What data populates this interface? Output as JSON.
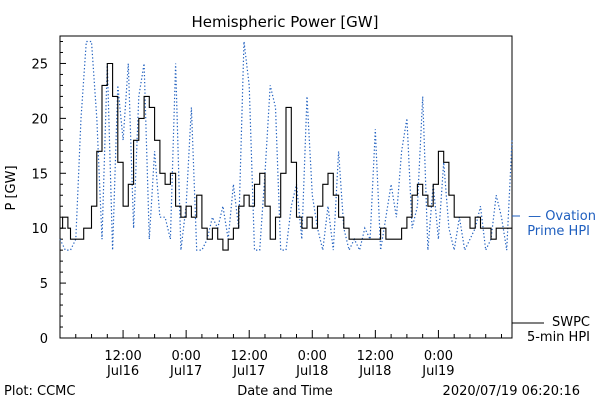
{
  "footer": {
    "plot_source": "Plot: CCMC",
    "timestamp": "2020/07/19 06:20:16"
  },
  "legend": {
    "ovation": {
      "line1": "— Ovation",
      "line2": "Prime HPI",
      "color": "#1f5fbf"
    },
    "swpc": {
      "line1": "SWPC",
      "line2": "5-min HPI",
      "color": "#000000"
    }
  },
  "chart_data": {
    "type": "line",
    "title": "Hemispheric Power [GW]",
    "xlabel": "Date and Time",
    "ylabel": "P [GW]",
    "xlim": [
      0,
      86
    ],
    "ylim": [
      0,
      27.5
    ],
    "yticks": [
      0,
      5,
      10,
      15,
      20,
      25
    ],
    "xticks": [
      {
        "x": 12,
        "line1": "12:00",
        "line2": "Jul16"
      },
      {
        "x": 24,
        "line1": "0:00",
        "line2": "Jul17"
      },
      {
        "x": 36,
        "line1": "12:00",
        "line2": "Jul17"
      },
      {
        "x": 48,
        "line1": "0:00",
        "line2": "Jul18"
      },
      {
        "x": 60,
        "line1": "12:00",
        "line2": "Jul18"
      },
      {
        "x": 72,
        "line1": "0:00",
        "line2": "Jul19"
      }
    ],
    "series": [
      {
        "name": "SWPC 5-min HPI",
        "color": "#000000",
        "style": "solid",
        "x": [
          0,
          0.5,
          1,
          1.5,
          2,
          3,
          4,
          4.5,
          5,
          6,
          7,
          8,
          9,
          10,
          11,
          12,
          13,
          14,
          15,
          16,
          17,
          18,
          19,
          20,
          21,
          22,
          23,
          24,
          25,
          26,
          27,
          28,
          29,
          30,
          31,
          32,
          33,
          34,
          35,
          36,
          37,
          38,
          39,
          40,
          41,
          42,
          43,
          44,
          45,
          46,
          47,
          48,
          49,
          50,
          51,
          52,
          53,
          54,
          55,
          56,
          57,
          58,
          59,
          60,
          61,
          62,
          63,
          64,
          65,
          66,
          67,
          68,
          69,
          70,
          71,
          72,
          73,
          74,
          75,
          76,
          77,
          78,
          79,
          80,
          81,
          82,
          83,
          84,
          85,
          86
        ],
        "y": [
          10,
          11,
          11,
          10,
          9,
          9,
          9,
          10,
          10,
          12,
          17,
          23,
          25,
          22,
          16,
          12,
          14,
          18,
          20,
          22,
          21,
          18,
          15,
          14,
          15,
          12,
          11,
          12,
          11,
          13,
          10,
          9,
          10,
          9,
          8,
          9,
          10,
          12,
          13,
          12,
          14,
          15,
          12,
          9,
          11,
          15,
          21,
          16,
          11,
          10,
          11,
          10,
          12,
          14,
          15,
          13,
          11,
          10,
          9,
          9,
          9,
          9,
          9,
          9,
          10,
          9,
          9,
          9,
          10,
          11,
          13,
          14,
          13,
          12,
          14,
          17,
          16,
          13,
          11,
          11,
          11,
          10,
          11,
          10,
          10,
          9,
          10,
          10,
          10,
          10
        ],
        "y_fix_note": ""
      },
      {
        "name": "Ovation Prime HPI",
        "color": "#1f5fbf",
        "style": "dotted",
        "x": [
          0,
          1,
          2,
          3,
          4,
          5,
          6,
          7,
          8,
          9,
          10,
          11,
          12,
          13,
          14,
          15,
          16,
          17,
          18,
          19,
          20,
          21,
          22,
          23,
          24,
          25,
          26,
          27,
          28,
          29,
          30,
          31,
          32,
          33,
          34,
          35,
          36,
          37,
          38,
          39,
          40,
          41,
          42,
          43,
          44,
          45,
          46,
          47,
          48,
          49,
          50,
          51,
          52,
          53,
          54,
          55,
          56,
          57,
          58,
          59,
          60,
          61,
          62,
          63,
          64,
          65,
          66,
          67,
          68,
          69,
          70,
          71,
          72,
          73,
          74,
          75,
          76,
          77,
          78,
          79,
          80,
          81,
          82,
          83,
          84,
          85,
          86
        ],
        "y": [
          9,
          8,
          8,
          9,
          20,
          27,
          27,
          20,
          9,
          25,
          8,
          23,
          18,
          25,
          10,
          22,
          25,
          9,
          17,
          11,
          11,
          9,
          25,
          8,
          12,
          21,
          8,
          8,
          9,
          11,
          10,
          12,
          9,
          14,
          10,
          27,
          23,
          8,
          8,
          15,
          23,
          21,
          8,
          8,
          12,
          14,
          9,
          22,
          13,
          10,
          8,
          12,
          8,
          17,
          10,
          8,
          9,
          8,
          10,
          9,
          19,
          8,
          11,
          14,
          11,
          17,
          20,
          10,
          12,
          22,
          8,
          14,
          9,
          16,
          10,
          8,
          11,
          8,
          9,
          10,
          12,
          8,
          9,
          13,
          11,
          8,
          18
        ]
      }
    ]
  }
}
